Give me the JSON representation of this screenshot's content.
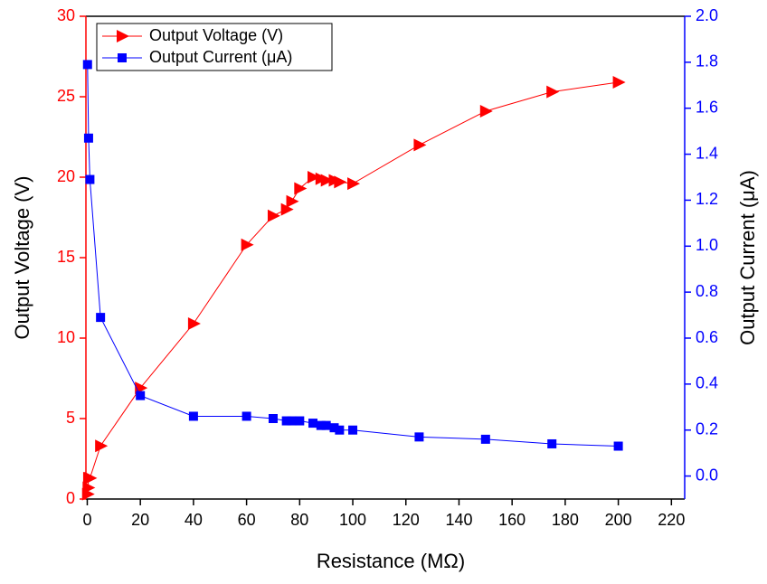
{
  "chart_data": {
    "type": "line",
    "xlabel": "Resistance (MΩ)",
    "ylabel": "Output Voltage (V)",
    "y2label": "Output Current (μA)",
    "xlim": [
      -0.5,
      225
    ],
    "xticks": [
      0,
      20,
      40,
      60,
      80,
      100,
      120,
      140,
      160,
      180,
      200,
      220
    ],
    "ylim": [
      0,
      30
    ],
    "yticks": [
      0,
      5,
      10,
      15,
      20,
      25,
      30
    ],
    "ycolor": "#ff0000",
    "y2lim": [
      -0.1,
      2.0
    ],
    "y2ticks": [
      {
        "value": 0,
        "label": "0.0"
      },
      0.2,
      0.4,
      0.6,
      0.8,
      {
        "value": 1,
        "label": "1.0"
      },
      1.2,
      1.4,
      1.6,
      1.8,
      {
        "value": 2,
        "label": "2.0"
      }
    ],
    "y2color": "#0000ff",
    "legend": "upper-left",
    "series": [
      {
        "name": "Output Voltage (V)",
        "color": "#ff0000",
        "marker": "triangle-right",
        "x": [
          0.1,
          0.3,
          0.5,
          1,
          5,
          20,
          40,
          60,
          70,
          75,
          77,
          80,
          85,
          88,
          90,
          93,
          95,
          100,
          125,
          150,
          175,
          200
        ],
        "values": [
          0.3,
          0.7,
          1.3,
          1.3,
          3.3,
          6.9,
          10.9,
          15.8,
          17.6,
          18.0,
          18.5,
          19.3,
          20.0,
          19.9,
          19.8,
          19.8,
          19.7,
          19.6,
          22.0,
          24.1,
          25.3,
          25.9
        ]
      },
      {
        "name": "Output Current (μA)",
        "color": "#0000ff",
        "marker": "square",
        "axis": "y2",
        "x": [
          0.1,
          0.5,
          1,
          5,
          20,
          40,
          60,
          70,
          75,
          77,
          80,
          85,
          88,
          90,
          93,
          95,
          100,
          125,
          150,
          175,
          200
        ],
        "values": [
          1.79,
          1.47,
          1.29,
          0.69,
          0.35,
          0.26,
          0.26,
          0.25,
          0.24,
          0.24,
          0.24,
          0.23,
          0.22,
          0.22,
          0.21,
          0.2,
          0.2,
          0.17,
          0.16,
          0.14,
          0.13
        ]
      }
    ]
  }
}
